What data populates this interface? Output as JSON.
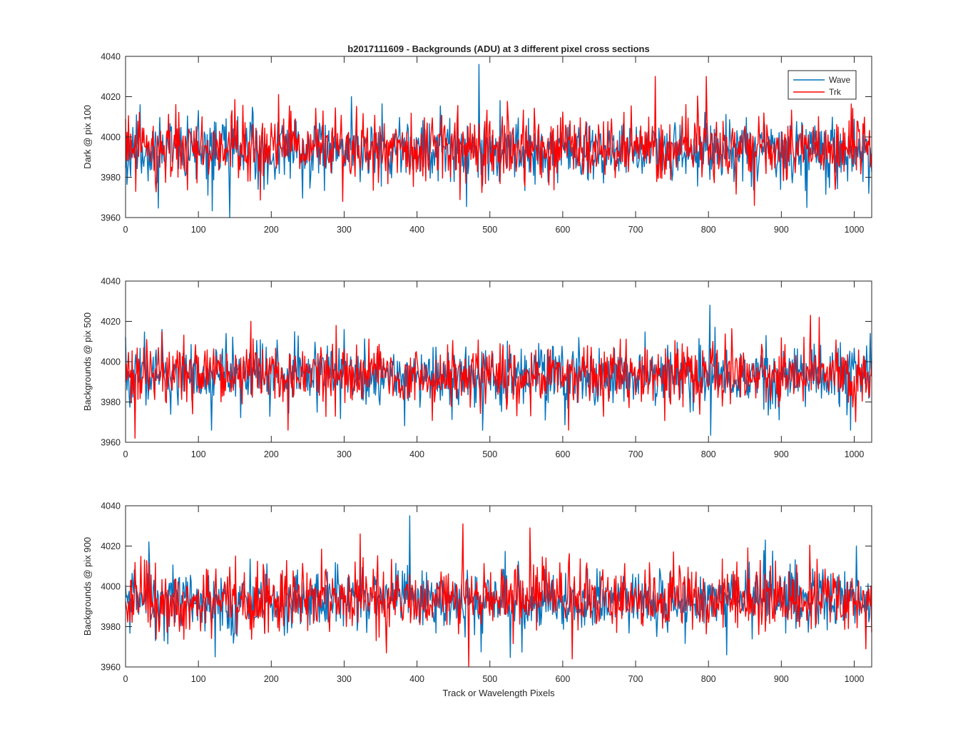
{
  "chart_data": {
    "type": "line",
    "title": "b2017111609 - Backgrounds (ADU) at 3 different pixel cross sections",
    "xlabel": "Track or Wavelength Pixels",
    "xlim": [
      0,
      1024
    ],
    "x_ticks": [
      "0",
      "100",
      "200",
      "300",
      "400",
      "500",
      "600",
      "700",
      "800",
      "900",
      "1000"
    ],
    "y_ticks": [
      "3960",
      "3980",
      "4000",
      "4020",
      "4040"
    ],
    "grid": false,
    "legend": {
      "location": "top-right",
      "entries": [
        "Wave",
        "Trk"
      ]
    },
    "colors": {
      "Wave": "#0072BD",
      "Trk": "#FF0000"
    },
    "panels": [
      {
        "ylabel": "Dark @ pix 100",
        "ylim": [
          3960,
          4040
        ],
        "series": [
          {
            "name": "Wave",
            "mean": 3993,
            "std": 7.5,
            "seed": 11,
            "spikes": [
              [
                485,
                4036
              ],
              [
                143,
                3960
              ],
              [
                310,
                4020
              ],
              [
                935,
                3965
              ],
              [
                1020,
                3972
              ],
              [
                20,
                4016
              ]
            ]
          },
          {
            "name": "Trk",
            "mean": 3994,
            "std": 7.5,
            "seed": 23,
            "spikes": [
              [
                727,
                4030
              ],
              [
                797,
                4030
              ],
              [
                210,
                4021
              ],
              [
                298,
                3968
              ],
              [
                863,
                3966
              ],
              [
                14,
                3973
              ]
            ]
          }
        ]
      },
      {
        "ylabel": "Backgrounds @ pix 500",
        "ylim": [
          3960,
          4040
        ],
        "series": [
          {
            "name": "Wave",
            "mean": 3993,
            "std": 7.5,
            "seed": 37,
            "spikes": [
              [
                802,
                4028
              ],
              [
                118,
                3966
              ],
              [
                995,
                3966
              ],
              [
                50,
                4016
              ],
              [
                1022,
                4014
              ]
            ]
          },
          {
            "name": "Trk",
            "mean": 3994,
            "std": 7.5,
            "seed": 41,
            "spikes": [
              [
                13,
                3962
              ],
              [
                940,
                4023
              ],
              [
                952,
                4022
              ],
              [
                223,
                3966
              ],
              [
                608,
                3966
              ],
              [
                172,
                4020
              ]
            ]
          }
        ]
      },
      {
        "ylabel": "Backgrounds @ pix 900",
        "ylim": [
          3960,
          4040
        ],
        "series": [
          {
            "name": "Wave",
            "mean": 3993,
            "std": 7.5,
            "seed": 53,
            "spikes": [
              [
                390,
                4035
              ],
              [
                123,
                3965
              ],
              [
                32,
                4022
              ],
              [
                825,
                3966
              ],
              [
                1003,
                4020
              ]
            ]
          },
          {
            "name": "Trk",
            "mean": 3994,
            "std": 7.5,
            "seed": 67,
            "spikes": [
              [
                463,
                4031
              ],
              [
                555,
                4029
              ],
              [
                358,
                3967
              ],
              [
                613,
                3964
              ],
              [
                322,
                4026
              ],
              [
                1016,
                3969
              ]
            ]
          }
        ]
      }
    ]
  }
}
